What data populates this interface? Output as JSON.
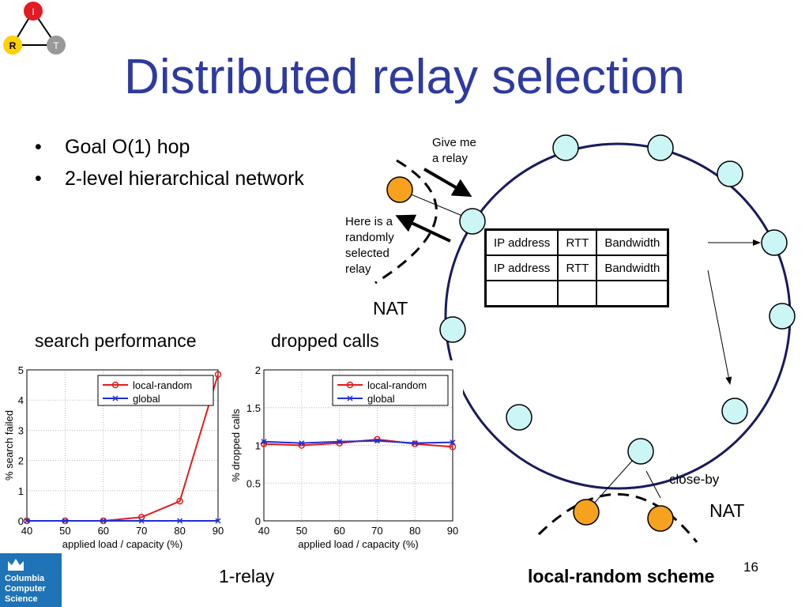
{
  "logo": {
    "top": "I",
    "left": "R",
    "right": "T"
  },
  "title": "Distributed relay selection",
  "bullets": [
    "Goal O(1) hop",
    "2-level hierarchical network"
  ],
  "bullet_symbol": "•",
  "diagram": {
    "give_me_relay": [
      "Give me",
      "a relay"
    ],
    "here_is": [
      "Here is a",
      "randomly",
      "selected",
      "relay"
    ],
    "nat_top": "NAT",
    "nat_bottom": "NAT",
    "close_by": "close-by",
    "table_rows": [
      [
        "IP address",
        "RTT",
        "Bandwidth"
      ],
      [
        "IP address",
        "RTT",
        "Bandwidth"
      ],
      [
        "",
        "",
        ""
      ]
    ]
  },
  "labels": {
    "search_performance": "search performance",
    "dropped_calls": "dropped calls",
    "one_relay": "1-relay",
    "scheme": "local-random scheme",
    "page_number": "16",
    "columbia": [
      "Columbia",
      "Computer",
      "Science"
    ]
  },
  "colors": {
    "title": "#2e3a9e",
    "local_random": "#e41a1c",
    "global": "#1f2fd6",
    "node_fill": "#ccf5f5",
    "peer_fill": "#f6a21e"
  },
  "chart_data": [
    {
      "type": "line",
      "title": "",
      "xlabel": "applied load / capacity (%)",
      "ylabel": "% search failed",
      "xlim": [
        40,
        90
      ],
      "ylim": [
        0,
        5
      ],
      "xticks": [
        40,
        50,
        60,
        70,
        80,
        90
      ],
      "yticks": [
        0,
        1,
        2,
        3,
        4,
        5
      ],
      "grid": true,
      "legend": "top-right",
      "x": [
        40,
        50,
        60,
        70,
        80,
        90
      ],
      "series": [
        {
          "name": "local-random",
          "values": [
            0,
            0,
            0,
            0.12,
            0.65,
            4.85
          ]
        },
        {
          "name": "global",
          "values": [
            0,
            0,
            0,
            0,
            0,
            0
          ]
        }
      ]
    },
    {
      "type": "line",
      "title": "",
      "xlabel": "applied load / capacity (%)",
      "ylabel": "% dropped calls",
      "xlim": [
        40,
        90
      ],
      "ylim": [
        0,
        2
      ],
      "xticks": [
        40,
        50,
        60,
        70,
        80,
        90
      ],
      "yticks": [
        0,
        0.5,
        1,
        1.5,
        2
      ],
      "grid": true,
      "legend": "top-right",
      "x": [
        40,
        50,
        60,
        70,
        80,
        90
      ],
      "series": [
        {
          "name": "local-random",
          "values": [
            1.02,
            1.0,
            1.03,
            1.08,
            1.02,
            0.98
          ]
        },
        {
          "name": "global",
          "values": [
            1.05,
            1.03,
            1.05,
            1.06,
            1.03,
            1.04
          ]
        }
      ]
    }
  ]
}
